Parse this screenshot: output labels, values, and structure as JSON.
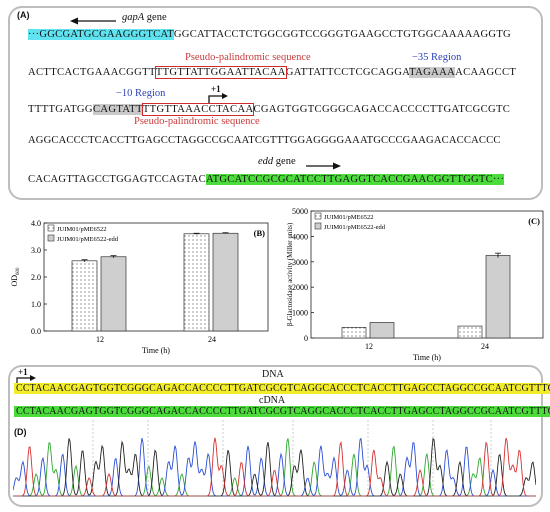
{
  "panelA": {
    "label": "(A)",
    "gapA_label": "gapA",
    "gapA_suffix": " gene",
    "edd_label": "edd",
    "edd_suffix": " gene",
    "pseudo_top": "Pseudo-palindromic  sequence",
    "pseudo_bottom": "Pseudo-palindromic  sequence",
    "region35": "−35 Region",
    "region10": "−10 Region",
    "plus1": "+1",
    "line1_cyan": "···GGCGATGCGAAGGGTCAT",
    "line1_rest": "GGCATTACCTCTGGCGGTCCGGGTGAAGCCTGTGGCAAAAAGGTG",
    "line2_a": "ACTTCACTGAAACGGTT",
    "line2_box": "TTGTTATTGGAATTACAA",
    "line2_b": "GATTATTCCTCGCAGGA",
    "line2_gray": "TAGAAA",
    "line2_c": "ACAAGCCT",
    "line3_a": "TTTTGATGG",
    "line3_gray1": "CAGTATT",
    "line3_box": "TTGTTAAACCTACAA",
    "line3_c": "CGAGTGGTCGGGCAGACCACCCCTTGATCGCGTC",
    "line4": "AGGCACCCTCACCTTGAGCCTAGGCCGCAATCGTTTGGAGGGGAAATGCCCGAAGACACCACCC",
    "line5_a": "CACAGTTAGCCTGGAGTCCAGTAC",
    "line5_green": "ATGCATCCGCGCATCCTTGAGGTCACCGAACGGTTGGTC···"
  },
  "panelB": {
    "label": "(B)",
    "legend": [
      "JUIM01/pME6522",
      "JUIM01/pME6522-edd"
    ],
    "ylabel": "OD600",
    "xlabel": "Time (h)"
  },
  "panelC": {
    "label": "(C)",
    "legend": [
      "JUIM01/pME6522",
      "JUIM01/pME6522-edd"
    ],
    "ylabel": "β-Glactosidase activity (Miller units)",
    "xlabel": "Time (h)"
  },
  "panelD": {
    "label": "(D)",
    "plus1": "+1",
    "dna_label": "DNA",
    "cdna_label": "cDNA",
    "dna_seq": "CCTACAACGAGTGGTCGGGCAGACCACCCCTTGATCGCGTCAGGCACCCTCACCTTGAGCCTAGGCCGCAATCGTTTGG",
    "cdna_seq": "CCTACAACGAGTGGTCGGGCAGACCACCCCTTGATCGCGTCAGGCACCCTCACCTTGAGCCTAGGCCGCAATCGTTTGG"
  },
  "chart_data": [
    {
      "type": "bar",
      "panel": "B",
      "categories": [
        "12",
        "24"
      ],
      "series": [
        {
          "name": "JUIM01/pME6522",
          "values": [
            2.6,
            3.6
          ],
          "errors": [
            0.04,
            0.02
          ]
        },
        {
          "name": "JUIM01/pME6522-edd",
          "values": [
            2.75,
            3.62
          ],
          "errors": [
            0.04,
            0.02
          ]
        }
      ],
      "xlabel": "Time (h)",
      "ylabel": "OD600",
      "ylim": [
        0,
        4
      ],
      "yticks": [
        "0.0",
        "1.0",
        "2.0",
        "3.0",
        "4.0"
      ],
      "legend_position": "top-left",
      "grid": false
    },
    {
      "type": "bar",
      "panel": "C",
      "categories": [
        "12",
        "24"
      ],
      "series": [
        {
          "name": "JUIM01/pME6522",
          "values": [
            420,
            470
          ],
          "errors": [
            0,
            0
          ]
        },
        {
          "name": "JUIM01/pME6522-edd",
          "values": [
            610,
            3250
          ],
          "errors": [
            0,
            90
          ]
        }
      ],
      "xlabel": "Time (h)",
      "ylabel": "β-Glactosidase activity (Miller units)",
      "ylim": [
        0,
        5000
      ],
      "yticks": [
        "0",
        "1000",
        "2000",
        "3000",
        "4000",
        "5000"
      ],
      "legend_position": "top-left",
      "grid": false
    }
  ]
}
